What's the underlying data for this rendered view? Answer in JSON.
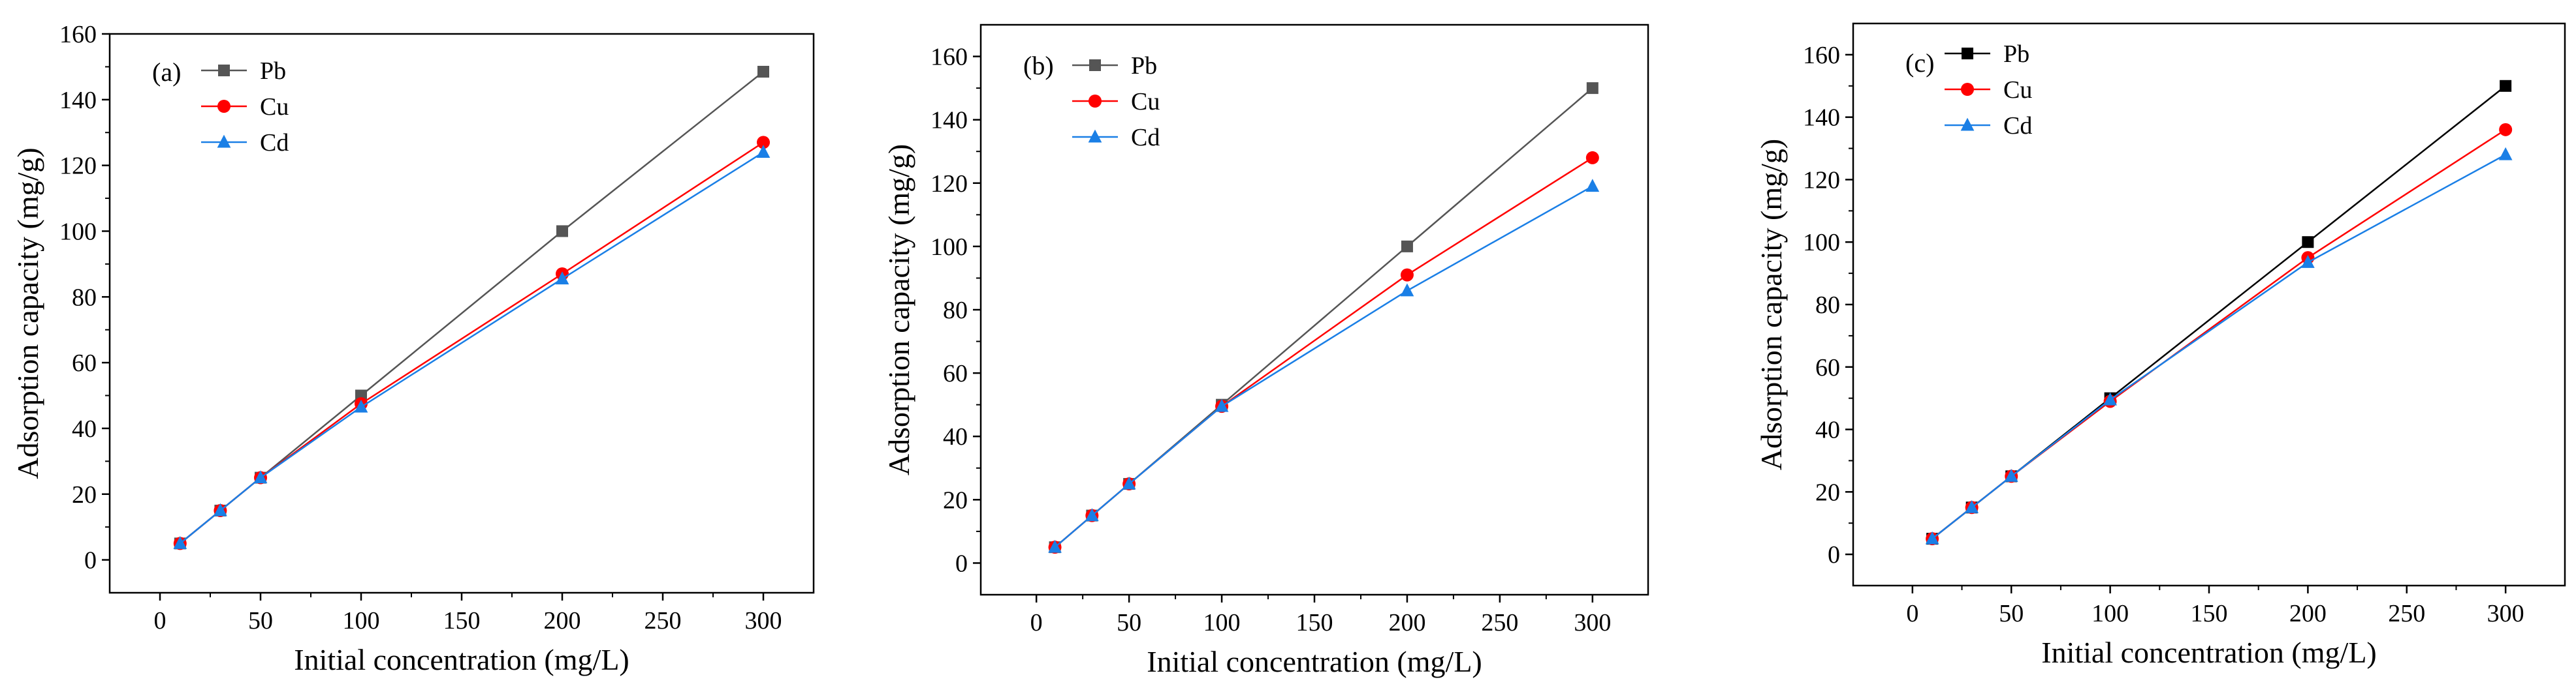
{
  "colors": {
    "Pb": "#555555",
    "Pb_dark": "#000000",
    "Cu": "#ff0000",
    "Cd": "#1a7fe6"
  },
  "chart_data": [
    {
      "type": "line",
      "panel_label": "(a)",
      "xlabel": "Initial concentration (mg/L)",
      "ylabel": "Adsorption capacity (mg/g)",
      "xlim": [
        -25,
        325
      ],
      "ylim": [
        -10,
        160
      ],
      "xticks": [
        0,
        50,
        100,
        150,
        200,
        250,
        300
      ],
      "yticks": [
        0,
        20,
        40,
        60,
        80,
        100,
        120,
        140,
        160
      ],
      "x": [
        10,
        30,
        50,
        100,
        200,
        300
      ],
      "legend_position": "top-left",
      "series": [
        {
          "name": "Pb",
          "marker": "square",
          "values": [
            5,
            15,
            25,
            50,
            100,
            148.5
          ]
        },
        {
          "name": "Cu",
          "marker": "circle",
          "values": [
            5,
            15,
            25,
            47.5,
            87,
            127
          ]
        },
        {
          "name": "Cd",
          "marker": "triangle",
          "values": [
            5,
            15,
            25,
            46.5,
            85.5,
            124
          ]
        }
      ]
    },
    {
      "type": "line",
      "panel_label": "(b)",
      "xlabel": "Initial concentration (mg/L)",
      "ylabel": "Adsorption capacity (mg/g)",
      "xlim": [
        -30,
        330
      ],
      "ylim": [
        -10,
        170
      ],
      "xticks": [
        0,
        50,
        100,
        150,
        200,
        250,
        300
      ],
      "yticks": [
        0,
        20,
        40,
        60,
        80,
        100,
        120,
        140,
        160
      ],
      "x": [
        10,
        30,
        50,
        100,
        200,
        300
      ],
      "legend_position": "top-left",
      "series": [
        {
          "name": "Pb",
          "marker": "square",
          "values": [
            5,
            15,
            25,
            50,
            100,
            150
          ]
        },
        {
          "name": "Cu",
          "marker": "circle",
          "values": [
            5,
            15,
            25,
            49.5,
            91,
            128
          ]
        },
        {
          "name": "Cd",
          "marker": "triangle",
          "values": [
            5,
            15,
            25,
            49.5,
            86,
            119
          ]
        }
      ]
    },
    {
      "type": "line",
      "panel_label": "(c)",
      "xlabel": "Initial concentration (mg/L)",
      "ylabel": "Adsorption capacity (mg/g)",
      "xlim": [
        -30,
        330
      ],
      "ylim": [
        -10,
        170
      ],
      "xticks": [
        0,
        50,
        100,
        150,
        200,
        250,
        300
      ],
      "yticks": [
        0,
        20,
        40,
        60,
        80,
        100,
        120,
        140,
        160
      ],
      "x": [
        10,
        30,
        50,
        100,
        200,
        300
      ],
      "legend_position": "top-left",
      "series": [
        {
          "name": "Pb",
          "marker": "square",
          "values": [
            5,
            15,
            25,
            50,
            100,
            150
          ]
        },
        {
          "name": "Cu",
          "marker": "circle",
          "values": [
            5,
            15,
            25,
            49,
            95,
            136
          ]
        },
        {
          "name": "Cd",
          "marker": "triangle",
          "values": [
            5,
            15,
            25,
            49.5,
            93.5,
            128
          ]
        }
      ]
    }
  ]
}
